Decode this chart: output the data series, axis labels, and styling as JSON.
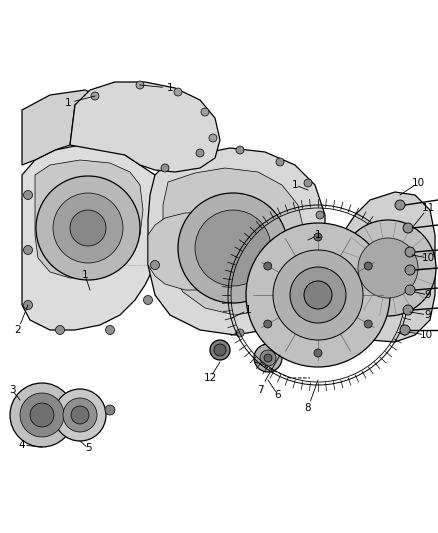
{
  "bg_color": "#ffffff",
  "line_color": "#000000",
  "label_color": "#000000",
  "fig_width": 4.38,
  "fig_height": 5.33,
  "dpi": 100,
  "gray_light": "#e8e8e8",
  "gray_mid": "#c8c8c8",
  "gray_dark": "#a0a0a0",
  "label_fs": 7.5,
  "lw_main": 0.9,
  "lw_thin": 0.5,
  "lw_thick": 1.2
}
